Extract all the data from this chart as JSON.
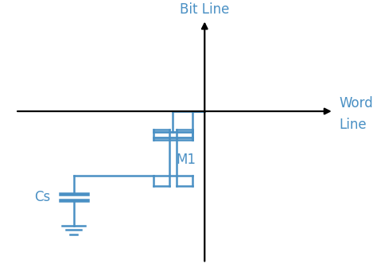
{
  "bg_color": "#ffffff",
  "line_color": "#4a90c4",
  "axis_color": "#000000",
  "text_color_blue": "#4a90c4",
  "bit_line_label": "Bit Line",
  "word_line_label1": "Word",
  "word_line_label2": "Line",
  "cs_label": "Cs",
  "m1_label": "M1",
  "figsize": [
    4.74,
    3.46
  ],
  "dpi": 100,
  "ox": 0.575,
  "oy": 0.62
}
